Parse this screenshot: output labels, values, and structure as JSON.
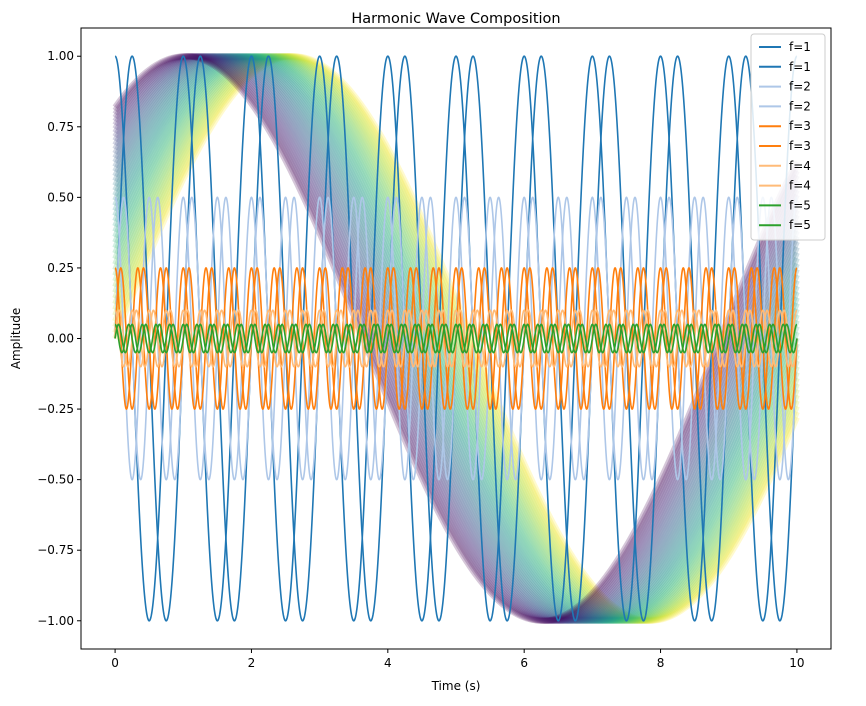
{
  "chart_data": {
    "type": "line",
    "title": "Harmonic Wave Composition",
    "xlabel": "Time (s)",
    "ylabel": "Amplitude",
    "xlim": [
      -0.5,
      10.5
    ],
    "ylim": [
      -1.1,
      1.1
    ],
    "xticks": [
      0,
      2,
      4,
      6,
      8,
      10
    ],
    "xtick_labels": [
      "0",
      "2",
      "4",
      "6",
      "8",
      "10"
    ],
    "yticks": [
      -1.0,
      -0.75,
      -0.5,
      -0.25,
      0.0,
      0.25,
      0.5,
      0.75,
      1.0
    ],
    "ytick_labels": [
      "−1.00",
      "−0.75",
      "−0.50",
      "−0.25",
      "0.00",
      "0.25",
      "0.50",
      "0.75",
      "1.00"
    ],
    "grid": false,
    "legend_position": "top-right",
    "x_range": [
      0,
      10
    ],
    "series": [
      {
        "name": "f=1",
        "amplitude": 1.0,
        "frequency": 1,
        "phase": "sin",
        "color": "#1f77b4"
      },
      {
        "name": "f=1",
        "amplitude": 1.0,
        "frequency": 1,
        "phase": "cos",
        "color": "#1f77b4"
      },
      {
        "name": "f=2",
        "amplitude": 0.5,
        "frequency": 2,
        "phase": "sin",
        "color": "#aec7e8"
      },
      {
        "name": "f=2",
        "amplitude": 0.5,
        "frequency": 2,
        "phase": "cos",
        "color": "#aec7e8"
      },
      {
        "name": "f=3",
        "amplitude": 0.25,
        "frequency": 3,
        "phase": "sin",
        "color": "#ff7f0e"
      },
      {
        "name": "f=3",
        "amplitude": 0.25,
        "frequency": 3,
        "phase": "cos",
        "color": "#ff7f0e"
      },
      {
        "name": "f=4",
        "amplitude": 0.1,
        "frequency": 4,
        "phase": "sin",
        "color": "#ffbb78"
      },
      {
        "name": "f=4",
        "amplitude": 0.1,
        "frequency": 4,
        "phase": "cos",
        "color": "#ffbb78"
      },
      {
        "name": "f=5",
        "amplitude": 0.05,
        "frequency": 5,
        "phase": "sin",
        "color": "#2ca02c"
      },
      {
        "name": "f=5",
        "amplitude": 0.05,
        "frequency": 5,
        "phase": "cos",
        "color": "#2ca02c"
      }
    ],
    "background_band": {
      "function": "sin(0.6*(t + offset))",
      "offset_range": [
        0,
        1.6
      ],
      "colormap": "viridis_r",
      "alpha": 0.3
    }
  }
}
